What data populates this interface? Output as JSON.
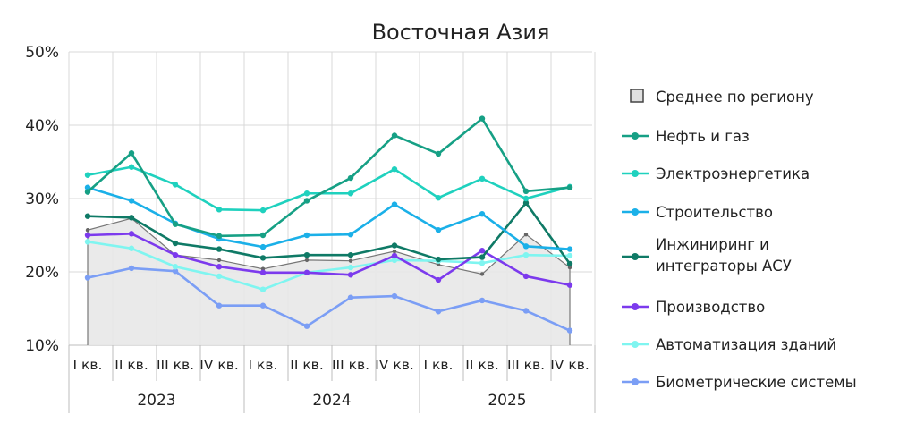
{
  "chart_data": {
    "type": "line",
    "title": "Восточная Азия",
    "ylim": [
      10,
      50
    ],
    "y_ticks": [
      "10%",
      "20%",
      "30%",
      "40%",
      "50%"
    ],
    "y_tick_values": [
      10,
      20,
      30,
      40,
      50
    ],
    "grid": true,
    "legend_position": "right",
    "categories": [
      "I кв.",
      "II кв.",
      "III кв.",
      "IV кв.",
      "I кв.",
      "II кв.",
      "III кв.",
      "IV кв.",
      "I кв.",
      "II кв.",
      "III кв.",
      "IV кв."
    ],
    "years": [
      "2023",
      "2024",
      "2025"
    ],
    "average": {
      "name": "Среднее по региону",
      "values": [
        25.7,
        27.3,
        22.3,
        21.6,
        20.4,
        21.6,
        21.5,
        22.8,
        21.0,
        19.7,
        25.1,
        20.6
      ],
      "fill": "#e8e8e8",
      "stroke": "#777777"
    },
    "series": [
      {
        "name": "Нефть и газ",
        "color": "#16a085",
        "values": [
          30.9,
          36.2,
          26.5,
          24.9,
          25.0,
          29.7,
          32.8,
          38.6,
          36.1,
          40.9,
          31.0,
          31.5
        ]
      },
      {
        "name": "Электроэнергетика",
        "color": "#1fd1be",
        "values": [
          33.2,
          34.3,
          31.9,
          28.5,
          28.4,
          30.7,
          30.7,
          34.0,
          30.1,
          32.7,
          30.0,
          31.6
        ]
      },
      {
        "name": "Строительство",
        "color": "#1bb0e8",
        "values": [
          31.5,
          29.7,
          26.6,
          24.5,
          23.4,
          25.0,
          25.1,
          29.2,
          25.7,
          27.9,
          23.5,
          23.1
        ]
      },
      {
        "name": "Инжиниринг и интеграторы АСУ",
        "color": "#0f7a66",
        "values": [
          27.6,
          27.4,
          23.9,
          23.1,
          21.9,
          22.3,
          22.3,
          23.6,
          21.7,
          22.0,
          29.4,
          21.1
        ]
      },
      {
        "name": "Производство",
        "color": "#7c3aed",
        "values": [
          25.0,
          25.2,
          22.3,
          20.7,
          19.9,
          19.9,
          19.6,
          22.2,
          18.9,
          22.9,
          19.4,
          18.2
        ]
      },
      {
        "name": "Автоматизация зданий",
        "color": "#7ff5f0",
        "values": [
          24.1,
          23.2,
          20.7,
          19.4,
          17.6,
          19.9,
          20.6,
          21.6,
          21.5,
          21.2,
          22.3,
          22.2
        ]
      },
      {
        "name": "Биометрические системы",
        "color": "#7b9ef5",
        "values": [
          19.2,
          20.5,
          20.1,
          15.4,
          15.4,
          12.6,
          16.5,
          16.7,
          14.6,
          16.1,
          14.7,
          12.0
        ]
      }
    ]
  }
}
